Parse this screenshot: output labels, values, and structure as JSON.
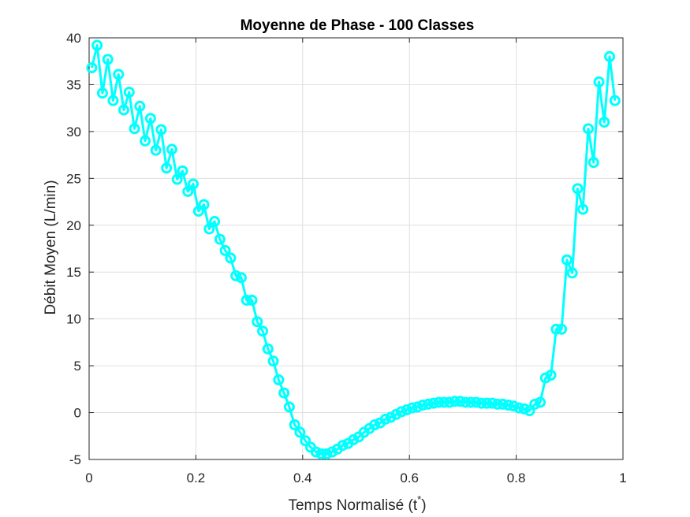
{
  "chart_data": {
    "type": "line",
    "title": "Moyenne de Phase - 100 Classes",
    "xlabel": "Temps Normalisé (t",
    "xlabel_superscript": "*",
    "xlabel_suffix": ")",
    "ylabel": "Débit Moyen (L/min)",
    "xlim": [
      0,
      1
    ],
    "ylim": [
      -5,
      40
    ],
    "xticks": [
      "0",
      "0.2",
      "0.4",
      "0.6",
      "0.8",
      "1"
    ],
    "yticks": [
      "-5",
      "0",
      "5",
      "10",
      "15",
      "20",
      "25",
      "30",
      "35",
      "40"
    ],
    "grid": true,
    "marker": "circle",
    "series": [
      {
        "color": "#00ffff",
        "x": [
          0.005,
          0.015,
          0.025,
          0.035,
          0.045,
          0.055,
          0.065,
          0.075,
          0.085,
          0.095,
          0.105,
          0.115,
          0.125,
          0.135,
          0.145,
          0.155,
          0.165,
          0.175,
          0.185,
          0.195,
          0.205,
          0.215,
          0.225,
          0.235,
          0.245,
          0.255,
          0.265,
          0.275,
          0.285,
          0.295,
          0.305,
          0.315,
          0.325,
          0.335,
          0.345,
          0.355,
          0.365,
          0.375,
          0.385,
          0.395,
          0.405,
          0.415,
          0.425,
          0.435,
          0.445,
          0.455,
          0.465,
          0.475,
          0.485,
          0.495,
          0.505,
          0.515,
          0.525,
          0.535,
          0.545,
          0.555,
          0.565,
          0.575,
          0.585,
          0.595,
          0.605,
          0.615,
          0.625,
          0.635,
          0.645,
          0.655,
          0.665,
          0.675,
          0.685,
          0.695,
          0.705,
          0.715,
          0.725,
          0.735,
          0.745,
          0.755,
          0.765,
          0.775,
          0.785,
          0.795,
          0.805,
          0.815,
          0.825,
          0.835,
          0.845,
          0.855,
          0.865,
          0.875,
          0.885,
          0.895,
          0.905,
          0.915,
          0.925,
          0.935,
          0.945,
          0.955,
          0.965,
          0.975,
          0.985
        ],
        "y": [
          36.8,
          39.2,
          34.1,
          37.7,
          33.3,
          36.1,
          32.3,
          34.2,
          30.3,
          32.7,
          29.0,
          31.4,
          28.0,
          30.2,
          26.1,
          28.1,
          24.9,
          25.8,
          23.6,
          24.4,
          21.5,
          22.2,
          19.6,
          20.4,
          18.5,
          17.3,
          16.5,
          14.6,
          14.4,
          12.0,
          12.0,
          9.7,
          8.7,
          6.8,
          5.5,
          3.5,
          2.1,
          0.6,
          -1.3,
          -2.1,
          -3.0,
          -3.7,
          -4.2,
          -4.4,
          -4.4,
          -4.2,
          -3.9,
          -3.5,
          -3.3,
          -2.9,
          -2.6,
          -2.1,
          -1.7,
          -1.3,
          -1.1,
          -0.7,
          -0.5,
          -0.2,
          0.1,
          0.3,
          0.5,
          0.6,
          0.8,
          0.9,
          1.0,
          1.1,
          1.1,
          1.1,
          1.2,
          1.2,
          1.1,
          1.1,
          1.1,
          1.0,
          1.0,
          1.0,
          0.9,
          0.9,
          0.8,
          0.7,
          0.5,
          0.4,
          0.2,
          0.9,
          1.1,
          3.7,
          4.0,
          8.9,
          8.9,
          16.3,
          14.9,
          23.9,
          21.7,
          30.3,
          26.7,
          35.3,
          31.0,
          38.0,
          33.3
        ]
      }
    ]
  }
}
